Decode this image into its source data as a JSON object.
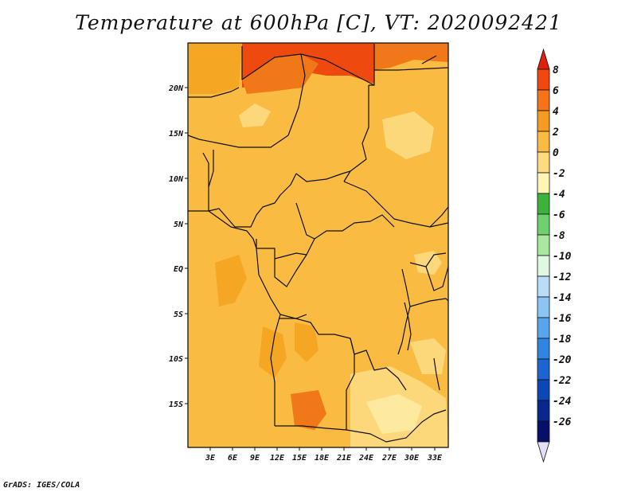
{
  "title": "Temperature at 600hPa [C], VT: 2020092421",
  "footer": "GrADS: IGES/COLA",
  "colors": {
    "map_base": "#FABB42",
    "map_warm": "#F5A623",
    "map_hot": "#F07818",
    "map_very_hot": "#EE4A10",
    "map_cool": "#FCD87A",
    "map_cooler": "#FDEA9E",
    "border": "#111111"
  },
  "map": {
    "lat_labels": [
      "20N",
      "15N",
      "10N",
      "5N",
      "EQ",
      "5S",
      "10S",
      "15S"
    ],
    "lon_labels": [
      "3E",
      "6E",
      "9E",
      "12E",
      "15E",
      "18E",
      "21E",
      "24E",
      "27E",
      "30E",
      "33E"
    ]
  },
  "colorbar": {
    "labels": [
      "8",
      "6",
      "4",
      "2",
      "0",
      "-2",
      "-4",
      "-6",
      "-8",
      "-10",
      "-12",
      "-14",
      "-16",
      "-18",
      "-20",
      "-22",
      "-24",
      "-26"
    ],
    "colors": [
      "#E01F0D",
      "#F0480F",
      "#F67318",
      "#F59A22",
      "#FABB42",
      "#FCDC7E",
      "#FDF4B6",
      "#3BB33B",
      "#70D070",
      "#A8E8A0",
      "#E0F8E0",
      "#B8DDF8",
      "#8CC4F4",
      "#5AA4EC",
      "#3184E2",
      "#1C64D2",
      "#0D46B8",
      "#08288E",
      "#06106A",
      "#E0E0F8"
    ]
  }
}
